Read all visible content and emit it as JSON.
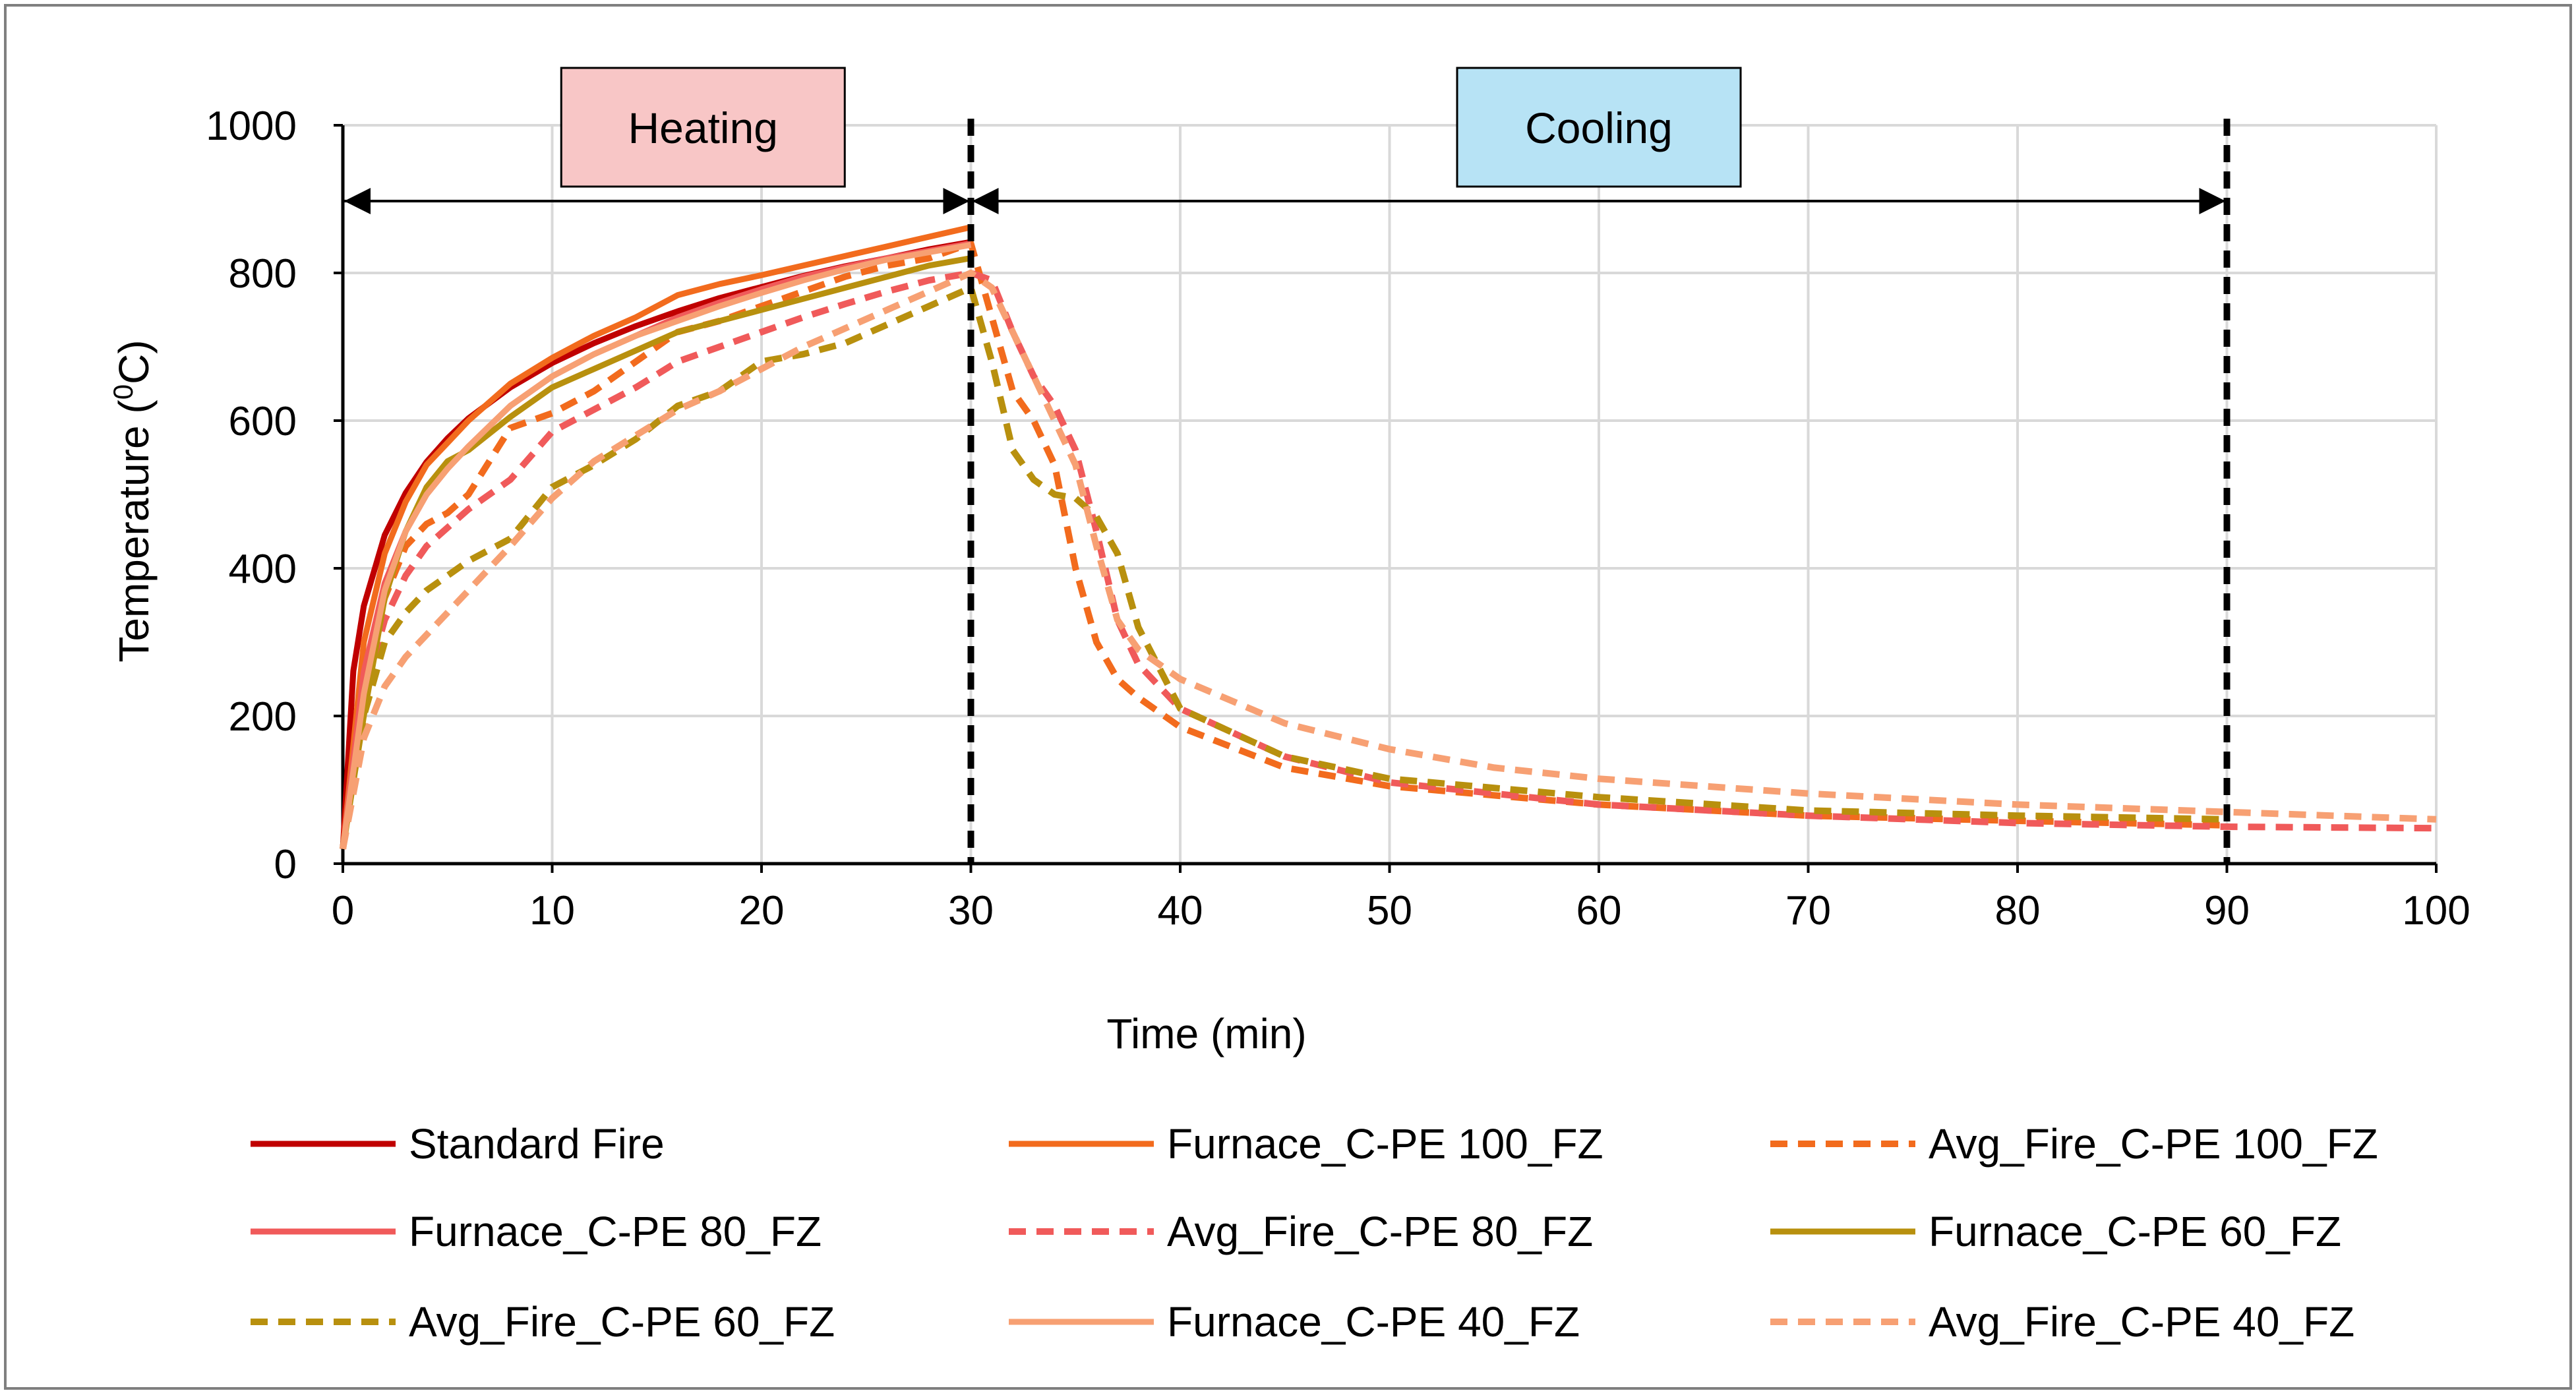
{
  "chart_data": {
    "type": "line",
    "title": "",
    "xlabel": "Time (min)",
    "ylabel_main": "Temperature (",
    "ylabel_sup": "0",
    "ylabel_tail": "C)",
    "xlim": [
      0,
      100
    ],
    "ylim": [
      0,
      1000
    ],
    "x_ticks": [
      0,
      10,
      20,
      30,
      40,
      50,
      60,
      70,
      80,
      90,
      100
    ],
    "y_ticks": [
      0,
      200,
      400,
      600,
      800,
      1000
    ],
    "grid": true,
    "legend_position": "bottom",
    "phases": [
      {
        "name": "heating",
        "label": "Heating",
        "start": 0,
        "end": 30,
        "color": "#f8c6c6"
      },
      {
        "name": "cooling",
        "label": "Cooling",
        "start": 30,
        "end": 90,
        "color": "#b7e3f5"
      }
    ],
    "vlines": [
      30,
      90
    ],
    "series": [
      {
        "name": "Standard Fire",
        "color": "#c00000",
        "dash": false,
        "x": [
          0,
          0.5,
          1,
          2,
          3,
          4,
          5,
          6,
          8,
          10,
          12,
          14,
          16,
          18,
          20,
          22,
          24,
          26,
          28,
          30
        ],
        "y": [
          20,
          261,
          349,
          445,
          502,
          544,
          576,
          603,
          645,
          678,
          705,
          728,
          748,
          766,
          781,
          796,
          809,
          820,
          832,
          842
        ]
      },
      {
        "name": "Furnace_C-PE 100_FZ",
        "color": "#f26b1d",
        "dash": false,
        "x": [
          0,
          1,
          2,
          3,
          4,
          5,
          6,
          8,
          10,
          12,
          14,
          16,
          18,
          20,
          22,
          24,
          26,
          28,
          30
        ],
        "y": [
          20,
          300,
          420,
          490,
          540,
          570,
          600,
          650,
          685,
          715,
          740,
          770,
          785,
          797,
          810,
          823,
          836,
          849,
          862
        ]
      },
      {
        "name": "Avg_Fire_C-PE 100_FZ",
        "color": "#f26b1d",
        "dash": true,
        "x": [
          0,
          1,
          2,
          3,
          4,
          5,
          6,
          8,
          10,
          12,
          14,
          16,
          18,
          20,
          22,
          24,
          26,
          28,
          30,
          31,
          32,
          33,
          34,
          35,
          36,
          37,
          38,
          40,
          45,
          50,
          60,
          70,
          80,
          90
        ],
        "y": [
          20,
          250,
          360,
          430,
          460,
          475,
          500,
          590,
          610,
          640,
          680,
          720,
          735,
          755,
          775,
          795,
          810,
          820,
          840,
          740,
          640,
          600,
          540,
          400,
          300,
          250,
          225,
          185,
          130,
          105,
          80,
          65,
          58,
          52
        ]
      },
      {
        "name": "Furnace_C-PE 80_FZ",
        "color": "#f05a5a",
        "dash": false,
        "x": [
          0,
          1,
          2,
          3,
          4,
          5,
          6,
          8,
          10,
          12,
          14,
          16,
          18,
          20,
          22,
          24,
          26,
          28,
          30
        ],
        "y": [
          20,
          260,
          380,
          450,
          500,
          535,
          565,
          620,
          660,
          690,
          715,
          740,
          760,
          778,
          795,
          808,
          820,
          830,
          840
        ]
      },
      {
        "name": "Avg_Fire_C-PE 80_FZ",
        "color": "#f05a5a",
        "dash": true,
        "x": [
          0,
          1,
          2,
          3,
          4,
          6,
          8,
          10,
          12,
          14,
          16,
          18,
          20,
          22,
          24,
          26,
          28,
          30,
          31,
          32,
          33,
          34,
          35,
          36,
          37,
          38,
          40,
          45,
          50,
          60,
          70,
          80,
          90,
          100
        ],
        "y": [
          20,
          230,
          330,
          390,
          430,
          480,
          520,
          585,
          615,
          645,
          680,
          700,
          720,
          740,
          758,
          775,
          790,
          800,
          790,
          720,
          660,
          620,
          560,
          450,
          330,
          270,
          210,
          145,
          110,
          80,
          65,
          55,
          50,
          48
        ]
      },
      {
        "name": "Furnace_C-PE 60_FZ",
        "color": "#b8900e",
        "dash": false,
        "x": [
          0,
          1,
          2,
          3,
          4,
          5,
          6,
          8,
          10,
          12,
          14,
          16,
          18,
          20,
          22,
          24,
          26,
          28,
          30
        ],
        "y": [
          20,
          200,
          360,
          450,
          510,
          545,
          560,
          605,
          645,
          670,
          695,
          720,
          735,
          750,
          765,
          780,
          795,
          810,
          820
        ]
      },
      {
        "name": "Avg_Fire_C-PE 60_FZ",
        "color": "#b8900e",
        "dash": true,
        "x": [
          0,
          1,
          2,
          3,
          4,
          6,
          8,
          10,
          12,
          14,
          16,
          18,
          20,
          22,
          24,
          26,
          28,
          30,
          31,
          32,
          33,
          34,
          35,
          36,
          37,
          38,
          40,
          45,
          50,
          60,
          70,
          80,
          90
        ],
        "y": [
          20,
          200,
          300,
          340,
          370,
          410,
          440,
          510,
          540,
          575,
          620,
          640,
          680,
          690,
          705,
          730,
          755,
          780,
          680,
          560,
          520,
          500,
          495,
          470,
          420,
          320,
          210,
          145,
          115,
          90,
          72,
          65,
          60
        ]
      },
      {
        "name": "Furnace_C-PE 40_FZ",
        "color": "#f7a073",
        "dash": false,
        "x": [
          0,
          1,
          2,
          3,
          4,
          5,
          6,
          8,
          10,
          12,
          14,
          16,
          18,
          20,
          22,
          24,
          26,
          28,
          30
        ],
        "y": [
          20,
          230,
          370,
          450,
          500,
          535,
          565,
          620,
          660,
          690,
          715,
          735,
          755,
          773,
          790,
          805,
          818,
          828,
          838
        ]
      },
      {
        "name": "Avg_Fire_C-PE 40_FZ",
        "color": "#f7a073",
        "dash": true,
        "x": [
          0,
          1,
          2,
          3,
          4,
          6,
          8,
          10,
          12,
          14,
          16,
          18,
          20,
          22,
          24,
          26,
          28,
          30,
          31,
          32,
          33,
          34,
          35,
          36,
          37,
          38,
          40,
          45,
          50,
          55,
          60,
          70,
          80,
          90,
          100
        ],
        "y": [
          20,
          170,
          240,
          280,
          310,
          370,
          430,
          495,
          545,
          580,
          615,
          640,
          670,
          700,
          725,
          750,
          775,
          800,
          780,
          720,
          660,
          600,
          540,
          430,
          330,
          290,
          250,
          190,
          155,
          130,
          115,
          95,
          80,
          70,
          60
        ]
      }
    ]
  }
}
